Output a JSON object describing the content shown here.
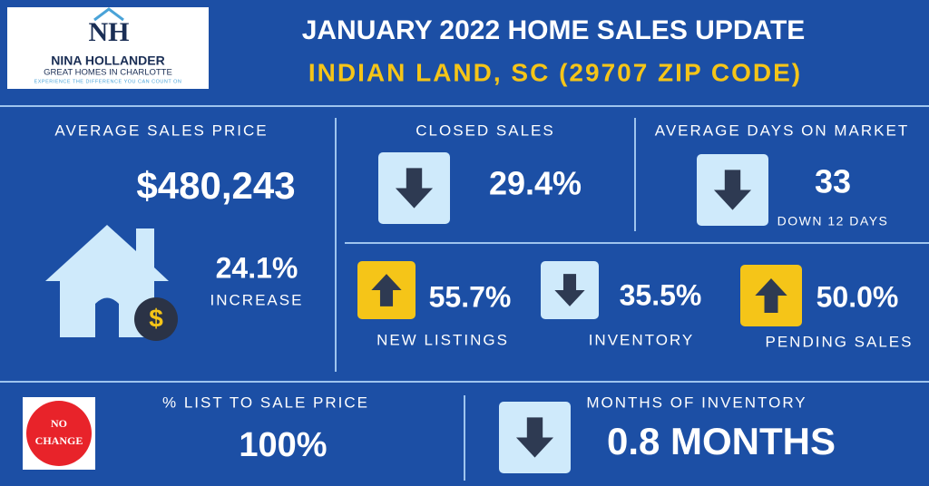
{
  "logo": {
    "monogram": "NH",
    "name": "NINA HOLLANDER",
    "subtitle": "GREAT HOMES IN CHARLOTTE",
    "tagline": "EXPERIENCE THE DIFFERENCE YOU CAN COUNT ON"
  },
  "header": {
    "title": "JANUARY 2022 HOME SALES UPDATE",
    "subtitle": "INDIAN LAND, SC (29707 ZIP CODE)"
  },
  "average_sales_price": {
    "label": "AVERAGE SALES PRICE",
    "value": "$480,243",
    "change": "24.1%",
    "change_label": "INCREASE",
    "icon_symbol": "$"
  },
  "closed_sales": {
    "label": "CLOSED SALES",
    "value": "29.4%"
  },
  "days_on_market": {
    "label": "AVERAGE DAYS ON MARKET",
    "value": "33",
    "note": "DOWN 12 DAYS"
  },
  "new_listings": {
    "label": "NEW LISTINGS",
    "value": "55.7%"
  },
  "inventory": {
    "label": "INVENTORY",
    "value": "35.5%"
  },
  "pending_sales": {
    "label": "PENDING SALES",
    "value": "50.0%"
  },
  "list_to_sale": {
    "label": "% LIST TO SALE PRICE",
    "value": "100%",
    "badge": [
      "NO",
      "CHANGE"
    ]
  },
  "months_of_inventory": {
    "label": "MONTHS OF INVENTORY",
    "value": "0.8 MONTHS"
  }
}
